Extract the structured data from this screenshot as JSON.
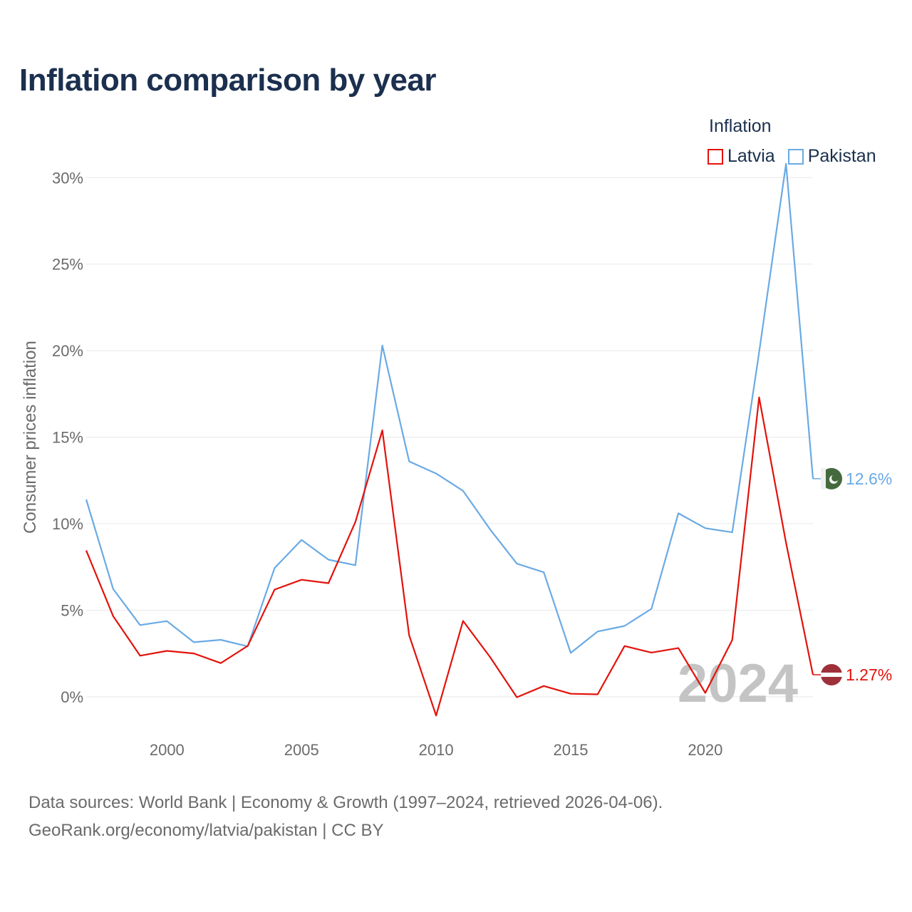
{
  "chart_data": {
    "type": "line",
    "title": "Inflation comparison by year",
    "legend_title": "Inflation",
    "ylabel": "Consumer prices inflation",
    "xlabel": "",
    "x": [
      1997,
      1998,
      1999,
      2000,
      2001,
      2002,
      2003,
      2004,
      2005,
      2006,
      2007,
      2008,
      2009,
      2010,
      2011,
      2012,
      2013,
      2014,
      2015,
      2016,
      2017,
      2018,
      2019,
      2020,
      2021,
      2022,
      2023,
      2024
    ],
    "xlim": [
      1997,
      2024
    ],
    "ylim": [
      -4,
      31
    ],
    "x_ticks": [
      2000,
      2005,
      2010,
      2015,
      2020
    ],
    "x_tick_labels": [
      "2000",
      "2005",
      "2010",
      "2015",
      "2020"
    ],
    "y_ticks": [
      0,
      5,
      10,
      15,
      20,
      25,
      30
    ],
    "y_tick_labels": [
      "0%",
      "5%",
      "10%",
      "15%",
      "20%",
      "25%",
      "30%"
    ],
    "grid": true,
    "year_watermark": "2024",
    "series": [
      {
        "name": "Latvia",
        "color": "#e3120b",
        "flag": "latvia-flag",
        "end_label": "1.27%",
        "values": [
          8.45,
          4.66,
          2.37,
          2.65,
          2.5,
          1.94,
          2.94,
          6.19,
          6.76,
          6.56,
          10.1,
          15.4,
          3.54,
          -1.09,
          4.38,
          2.3,
          -0.03,
          0.62,
          0.17,
          0.14,
          2.93,
          2.55,
          2.81,
          0.22,
          3.28,
          17.3,
          8.9,
          1.27
        ]
      },
      {
        "name": "Pakistan",
        "color": "#6aaae4",
        "flag": "pakistan-flag",
        "end_label": "12.6%",
        "values": [
          11.4,
          6.23,
          4.14,
          4.37,
          3.15,
          3.29,
          2.91,
          7.44,
          9.06,
          7.92,
          7.6,
          20.3,
          13.6,
          12.9,
          11.9,
          9.68,
          7.69,
          7.19,
          2.53,
          3.77,
          4.09,
          5.08,
          10.6,
          9.74,
          9.5,
          19.9,
          30.8,
          12.6
        ]
      }
    ]
  },
  "footer": {
    "line1": "Data sources: World Bank | Economy & Growth (1997–2024, retrieved 2026-04-06).",
    "line2": "GeoRank.org/economy/latvia/pakistan | CC BY"
  }
}
